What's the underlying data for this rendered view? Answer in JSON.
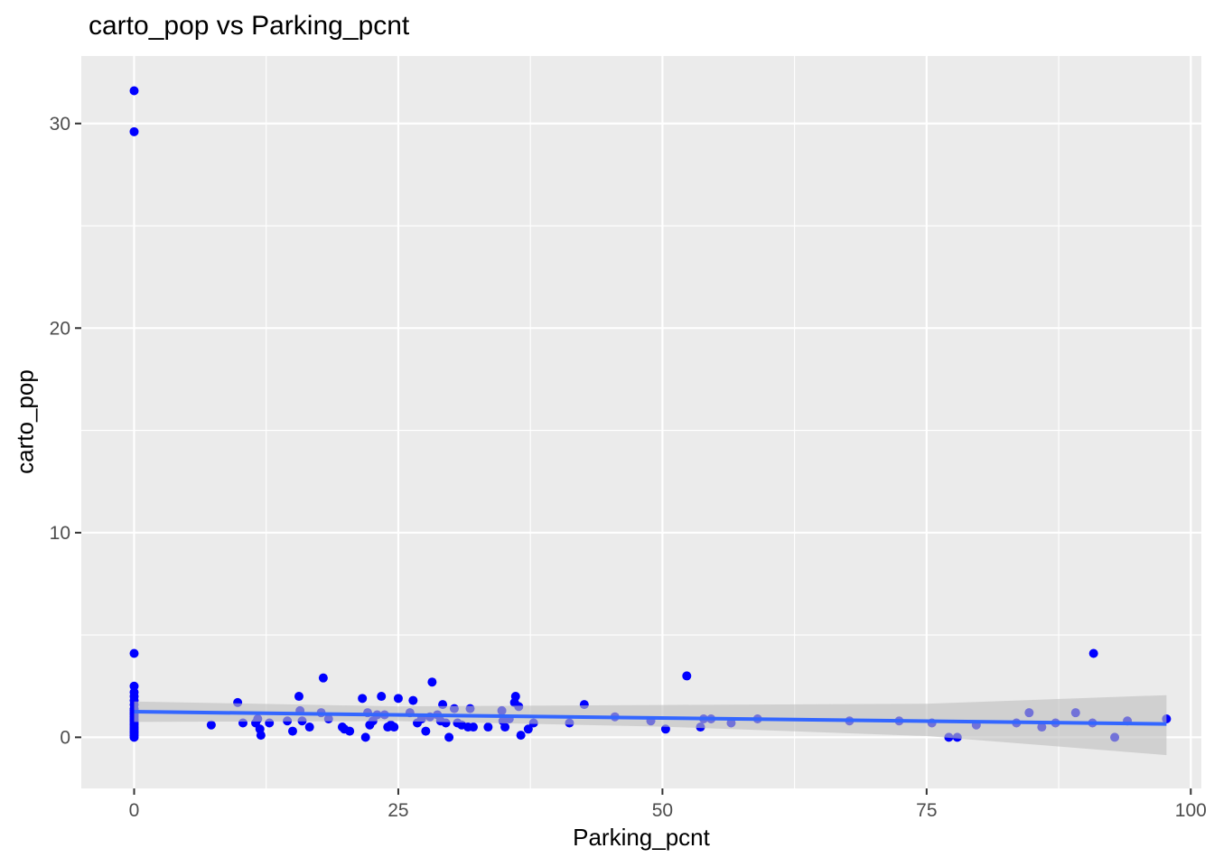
{
  "chart_data": {
    "type": "scatter",
    "title": "carto_pop vs Parking_pcnt",
    "xlabel": "Parking_pcnt",
    "ylabel": "carto_pop",
    "xlim": [
      -5,
      101
    ],
    "ylim": [
      -2.5,
      33.3
    ],
    "x_ticks": [
      0,
      25,
      50,
      75,
      100
    ],
    "x_tick_labels": [
      "0",
      "25",
      "50",
      "75",
      "100"
    ],
    "y_ticks": [
      0,
      10,
      20,
      30
    ],
    "y_tick_labels": [
      "0",
      "10",
      "20",
      "30"
    ],
    "grid": true,
    "legend": "none",
    "colors": {
      "panel": "#ebebeb",
      "grid": "#ffffff",
      "point": "#0000ff",
      "smooth_line": "#3366ff",
      "confidence_band": "#bebebe"
    },
    "series": [
      {
        "type": "scatter",
        "points": [
          [
            0,
            31.6
          ],
          [
            0,
            29.6
          ],
          [
            0,
            4.1
          ],
          [
            0,
            2.5
          ],
          [
            0,
            2.2
          ],
          [
            0,
            2.0
          ],
          [
            0,
            1.8
          ],
          [
            0,
            1.6
          ],
          [
            0,
            1.4
          ],
          [
            0,
            1.3
          ],
          [
            0,
            1.2
          ],
          [
            0,
            1.1
          ],
          [
            0,
            1.0
          ],
          [
            0,
            0.9
          ],
          [
            0,
            0.8
          ],
          [
            0,
            0.7
          ],
          [
            0,
            0.6
          ],
          [
            0,
            0.5
          ],
          [
            0,
            0.4
          ],
          [
            0,
            0.3
          ],
          [
            0,
            0.2
          ],
          [
            0,
            0.1
          ],
          [
            0,
            0.0
          ],
          [
            7.3,
            0.6
          ],
          [
            9.8,
            1.7
          ],
          [
            10.3,
            0.7
          ],
          [
            11.5,
            0.7
          ],
          [
            11.7,
            0.9
          ],
          [
            11.9,
            0.4
          ],
          [
            12.0,
            0.1
          ],
          [
            12.8,
            0.7
          ],
          [
            14.5,
            0.8
          ],
          [
            15.0,
            0.3
          ],
          [
            15.6,
            2.0
          ],
          [
            15.7,
            1.3
          ],
          [
            15.9,
            0.8
          ],
          [
            16.6,
            0.5
          ],
          [
            17.7,
            1.2
          ],
          [
            17.9,
            2.9
          ],
          [
            18.4,
            0.9
          ],
          [
            19.7,
            0.5
          ],
          [
            19.9,
            0.4
          ],
          [
            20.4,
            0.3
          ],
          [
            21.6,
            1.9
          ],
          [
            21.9,
            0.0
          ],
          [
            22.1,
            1.2
          ],
          [
            22.3,
            0.6
          ],
          [
            22.6,
            0.8
          ],
          [
            23.0,
            1.1
          ],
          [
            23.4,
            2.0
          ],
          [
            23.7,
            1.1
          ],
          [
            24.0,
            0.5
          ],
          [
            24.3,
            0.6
          ],
          [
            24.6,
            0.5
          ],
          [
            25.0,
            1.9
          ],
          [
            26.1,
            1.2
          ],
          [
            26.4,
            1.8
          ],
          [
            26.8,
            0.7
          ],
          [
            27.2,
            0.9
          ],
          [
            27.6,
            0.3
          ],
          [
            28.0,
            1.0
          ],
          [
            28.2,
            2.7
          ],
          [
            28.7,
            1.1
          ],
          [
            29.0,
            0.8
          ],
          [
            29.2,
            1.6
          ],
          [
            29.5,
            0.7
          ],
          [
            29.8,
            0.0
          ],
          [
            30.3,
            1.4
          ],
          [
            30.6,
            0.7
          ],
          [
            31.0,
            0.6
          ],
          [
            31.6,
            0.5
          ],
          [
            31.8,
            1.4
          ],
          [
            32.1,
            0.5
          ],
          [
            33.5,
            0.5
          ],
          [
            34.8,
            1.3
          ],
          [
            34.9,
            0.8
          ],
          [
            35.1,
            0.5
          ],
          [
            35.5,
            0.9
          ],
          [
            36.0,
            1.7
          ],
          [
            36.1,
            2.0
          ],
          [
            36.4,
            1.5
          ],
          [
            36.6,
            0.1
          ],
          [
            37.3,
            0.4
          ],
          [
            37.8,
            0.7
          ],
          [
            41.2,
            0.7
          ],
          [
            42.6,
            1.6
          ],
          [
            45.5,
            1.0
          ],
          [
            48.9,
            0.8
          ],
          [
            50.3,
            0.4
          ],
          [
            52.3,
            3.0
          ],
          [
            53.6,
            0.5
          ],
          [
            53.9,
            0.9
          ],
          [
            54.6,
            0.9
          ],
          [
            56.5,
            0.7
          ],
          [
            59.0,
            0.9
          ],
          [
            67.7,
            0.8
          ],
          [
            72.4,
            0.8
          ],
          [
            75.5,
            0.7
          ],
          [
            77.1,
            0.0
          ],
          [
            77.9,
            0.0
          ],
          [
            79.7,
            0.6
          ],
          [
            83.5,
            0.7
          ],
          [
            84.7,
            1.2
          ],
          [
            85.9,
            0.5
          ],
          [
            87.2,
            0.7
          ],
          [
            89.1,
            1.2
          ],
          [
            90.7,
            0.7
          ],
          [
            90.8,
            4.1
          ],
          [
            92.8,
            0.0
          ],
          [
            94.0,
            0.8
          ],
          [
            97.7,
            0.9
          ]
        ]
      },
      {
        "type": "line",
        "x": [
          0,
          97.7
        ],
        "y": [
          1.25,
          0.65
        ]
      },
      {
        "type": "band",
        "x": [
          0,
          25,
          50,
          75,
          97.7
        ],
        "lower": [
          0.75,
          0.79,
          0.52,
          0.06,
          -0.87
        ],
        "upper": [
          1.75,
          1.51,
          1.58,
          1.64,
          2.06
        ]
      }
    ]
  }
}
